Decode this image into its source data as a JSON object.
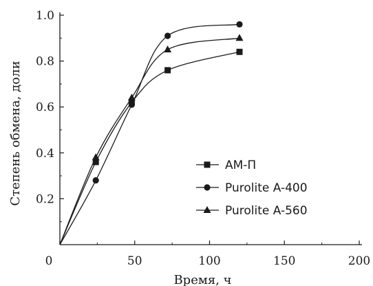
{
  "chart_data": {
    "type": "scatter",
    "title": "",
    "xlabel": "Время, ч",
    "ylabel": "Степень обмена, доли",
    "xlim": [
      0,
      200
    ],
    "ylim": [
      0,
      1.0
    ],
    "x_ticks": [
      "0",
      "50",
      "100",
      "150",
      "200"
    ],
    "y_ticks": [
      "0.2",
      "0.4",
      "0.6",
      "0.8",
      "1.0"
    ],
    "grid": false,
    "legend_position": "lower-right",
    "series": [
      {
        "name": "АМ-П",
        "marker": "square",
        "color": "#1a1a1a",
        "x": [
          24,
          48,
          72,
          120
        ],
        "y": [
          0.36,
          0.62,
          0.76,
          0.84
        ]
      },
      {
        "name": "Purolite A-400",
        "marker": "circle",
        "color": "#1a1a1a",
        "x": [
          24,
          48,
          72,
          120
        ],
        "y": [
          0.28,
          0.61,
          0.91,
          0.96
        ]
      },
      {
        "name": "Purolite A-560",
        "marker": "triangle",
        "color": "#1a1a1a",
        "x": [
          24,
          48,
          72,
          120
        ],
        "y": [
          0.38,
          0.64,
          0.85,
          0.9
        ]
      }
    ]
  }
}
